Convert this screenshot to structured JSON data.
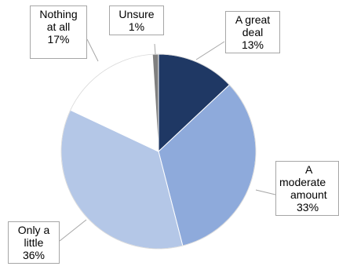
{
  "chart_data": {
    "type": "pie",
    "series": [
      {
        "slices": [
          {
            "label": "A great deal",
            "label_lines": [
              "A great",
              "deal"
            ],
            "value": 13,
            "value_label": "13%",
            "color": "#1f3864"
          },
          {
            "label": "A moderate amount",
            "label_lines": [
              "A",
              "moderate",
              "amount"
            ],
            "value": 33,
            "value_label": "33%",
            "color": "#8eaadb"
          },
          {
            "label": "Only a little",
            "label_lines": [
              "Only a",
              "little"
            ],
            "value": 36,
            "value_label": "36%",
            "color": "#b4c7e7"
          },
          {
            "label": "Nothing at all",
            "label_lines": [
              "Nothing",
              "at all"
            ],
            "value": 17,
            "value_label": "17%",
            "color": "#ffffff"
          },
          {
            "label": "Unsure",
            "label_lines": [
              "Unsure"
            ],
            "value": 1,
            "value_label": "1%",
            "color": "#7f7f7f"
          }
        ]
      }
    ],
    "start_angle": "12 o'clock, clockwise",
    "legend": "none (callout labels)"
  }
}
